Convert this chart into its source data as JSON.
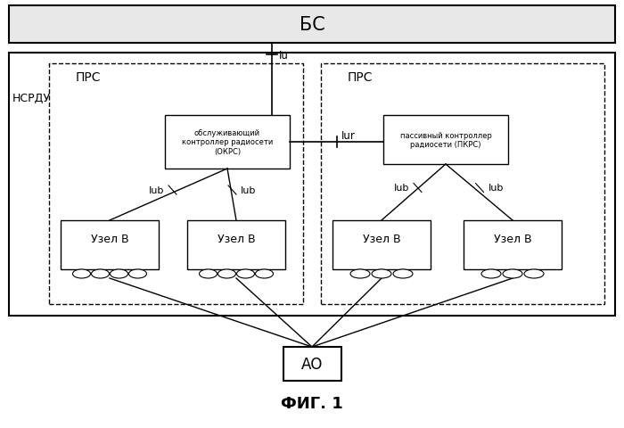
{
  "title": "ФИГ. 1",
  "bs_label": "БС",
  "nsrdu_label": "НСРДУ",
  "prs_label": "ПРС",
  "iu_label": "Iu",
  "iur_label": "Iur",
  "iub_label": "Iub",
  "okrs_label": "обслуживающий\nконтроллер радиосети\n(ОКРС)",
  "pkrs_label": "пассивный контроллер\nрадиосети (ПКРС)",
  "uzel_b_label": "Узел B",
  "ao_label": "АО",
  "bg_color": "#ffffff",
  "bs_fill": "#e8e8e8",
  "border_color": "#000000"
}
